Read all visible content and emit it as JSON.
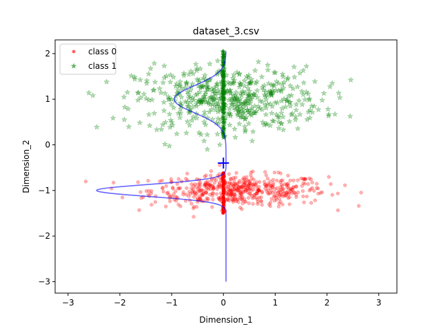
{
  "chart_data": {
    "type": "scatter",
    "title": "dataset_3.csv",
    "xlabel": "Dimension_1",
    "ylabel": "Dimension_2",
    "xlim": [
      -3.25,
      3.35
    ],
    "ylim": [
      -3.25,
      2.3
    ],
    "xticks": [
      -3,
      -2,
      -1,
      0,
      1,
      2,
      3
    ],
    "yticks": [
      -3,
      -2,
      -1,
      0,
      1,
      2
    ],
    "legend": {
      "placement": "top-left"
    },
    "series": [
      {
        "name": "class 0",
        "marker": "circle",
        "color": "#ff0000",
        "x_mean": 0.3,
        "x_std": 0.85,
        "y_mean": -1.0,
        "y_std": 0.17,
        "count": 520,
        "projection": {
          "x": 0.0,
          "y_min": -1.5,
          "y_max": -0.6
        }
      },
      {
        "name": "class 1",
        "marker": "star",
        "color": "#008000",
        "x_mean": 0.1,
        "x_std": 0.9,
        "y_mean": 1.0,
        "y_std": 0.35,
        "count": 520,
        "projection": {
          "x": 0.0,
          "y_min": 0.15,
          "y_max": 2.05
        }
      }
    ],
    "boundary_curve": {
      "color": "#0000ff",
      "x0": 0.05,
      "peaks": [
        {
          "y": 1.0,
          "sigma": 0.3,
          "amplitude": -1.0
        },
        {
          "y": -1.0,
          "sigma": 0.13,
          "amplitude": -2.5
        }
      ],
      "y_range": [
        -3.0,
        2.05
      ]
    },
    "threshold_marker": {
      "x": 0.0,
      "y": -0.4,
      "color": "#0000ff"
    }
  }
}
